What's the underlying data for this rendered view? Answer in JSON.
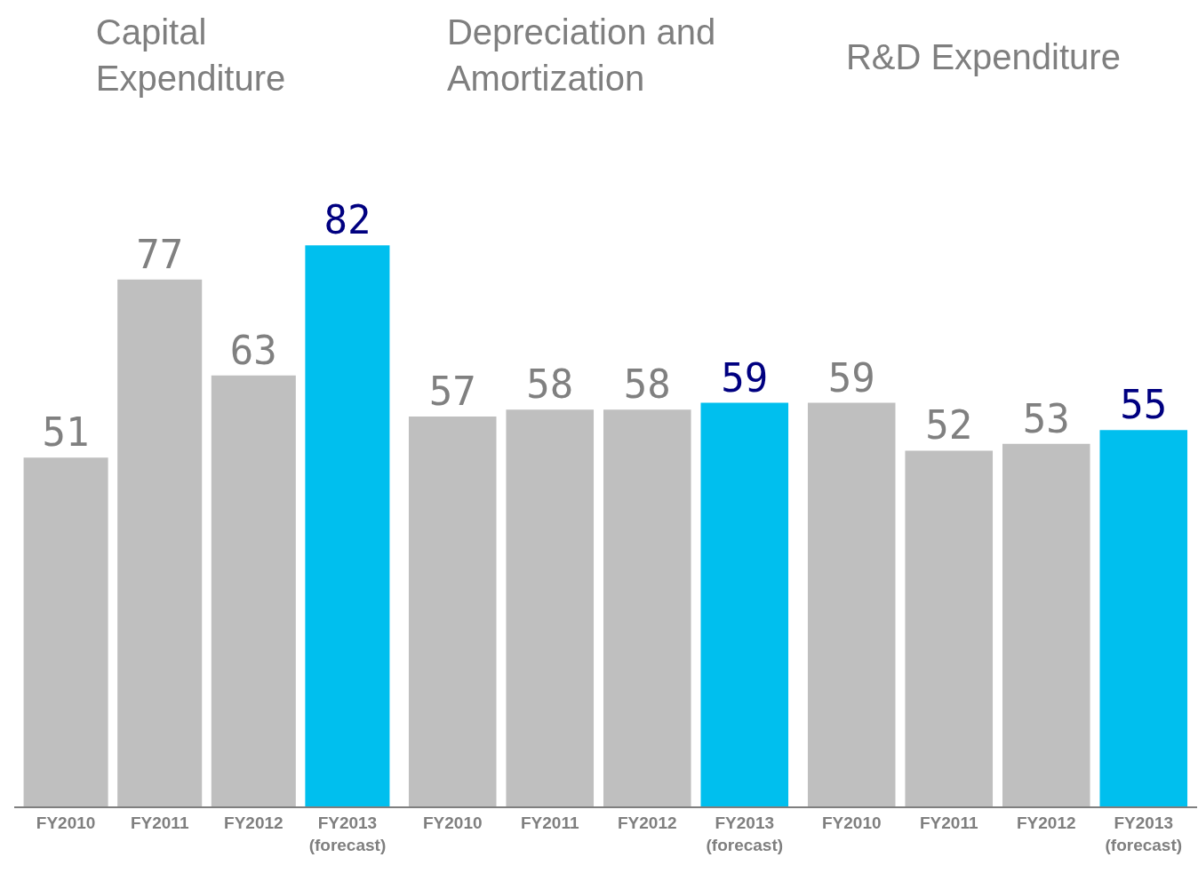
{
  "chart_data": [
    {
      "type": "bar",
      "title": "Capital\nExpenditure",
      "categories": [
        "FY2010",
        "FY2011",
        "FY2012",
        "FY2013\n(forecast)"
      ],
      "values": [
        51,
        77,
        63,
        82
      ],
      "colors": [
        "#bfbfbf",
        "#bfbfbf",
        "#bfbfbf",
        "#00bfee"
      ],
      "data_labels": true
    },
    {
      "type": "bar",
      "title": "Depreciation and\nAmortization",
      "categories": [
        "FY2010",
        "FY2011",
        "FY2012",
        "FY2013\n(forecast)"
      ],
      "values": [
        57,
        58,
        58,
        59
      ],
      "colors": [
        "#bfbfbf",
        "#bfbfbf",
        "#bfbfbf",
        "#00bfee"
      ],
      "data_labels": true
    },
    {
      "type": "bar",
      "title": "R&D Expenditure",
      "categories": [
        "FY2010",
        "FY2011",
        "FY2012",
        "FY2013\n(forecast)"
      ],
      "values": [
        59,
        52,
        53,
        55
      ],
      "colors": [
        "#bfbfbf",
        "#bfbfbf",
        "#bfbfbf",
        "#00bfee"
      ],
      "data_labels": true
    }
  ]
}
